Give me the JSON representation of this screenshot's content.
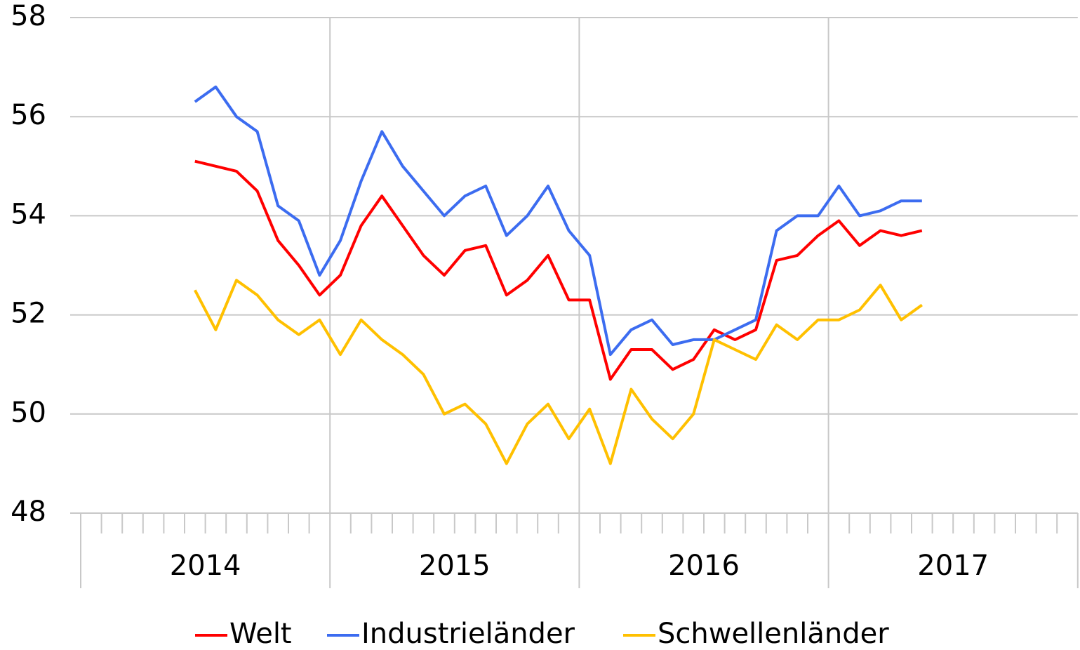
{
  "chart_data": {
    "type": "line",
    "categories": [
      null,
      null,
      null,
      null,
      null,
      null,
      null,
      null,
      null,
      null,
      null,
      null,
      null,
      null,
      null,
      null,
      null,
      null,
      null,
      null,
      null,
      null,
      null,
      null,
      null,
      null,
      null,
      null,
      null,
      null,
      null,
      null,
      null,
      null,
      null,
      null,
      null,
      null,
      null,
      null,
      null,
      null,
      null,
      null,
      null,
      null,
      null,
      null
    ],
    "year_labels": [
      "2014",
      "2015",
      "2016",
      "2017"
    ],
    "series": [
      {
        "name": "Welt",
        "color": "#ff0000",
        "values": [
          null,
          null,
          null,
          null,
          null,
          55.1,
          55.0,
          54.9,
          54.5,
          53.5,
          53.0,
          52.4,
          52.8,
          53.8,
          54.4,
          53.8,
          53.2,
          52.8,
          53.3,
          53.4,
          52.4,
          52.7,
          53.2,
          52.3,
          52.3,
          50.7,
          51.3,
          51.3,
          50.9,
          51.1,
          51.7,
          51.5,
          51.7,
          53.1,
          53.2,
          53.6,
          53.9,
          53.4,
          53.7,
          53.6,
          53.7,
          null,
          null,
          null,
          null,
          null,
          null,
          null
        ]
      },
      {
        "name": "Industrieländer",
        "color": "#3c6cf0",
        "values": [
          null,
          null,
          null,
          null,
          null,
          56.3,
          56.6,
          56.0,
          55.7,
          54.2,
          53.9,
          52.8,
          53.5,
          54.7,
          55.7,
          55.0,
          54.5,
          54.0,
          54.4,
          54.6,
          53.6,
          54.0,
          54.6,
          53.7,
          53.2,
          51.2,
          51.7,
          51.9,
          51.4,
          51.5,
          51.5,
          51.7,
          51.9,
          53.7,
          54.0,
          54.0,
          54.6,
          54.0,
          54.1,
          54.3,
          54.3,
          null,
          null,
          null,
          null,
          null,
          null,
          null
        ]
      },
      {
        "name": "Schwellenländer",
        "color": "#ffc000",
        "values": [
          null,
          null,
          null,
          null,
          null,
          52.5,
          51.7,
          52.7,
          52.4,
          51.9,
          51.6,
          51.9,
          51.2,
          51.9,
          51.5,
          51.2,
          50.8,
          50.0,
          50.2,
          49.8,
          49.0,
          49.8,
          50.2,
          49.5,
          50.1,
          49.0,
          50.5,
          49.9,
          49.5,
          50.0,
          51.5,
          51.3,
          51.1,
          51.8,
          51.5,
          51.9,
          51.9,
          52.1,
          52.6,
          51.9,
          52.2,
          null,
          null,
          null,
          null,
          null,
          null,
          null
        ]
      }
    ],
    "ylim": [
      48,
      58
    ],
    "yticks": [
      48,
      50,
      52,
      54,
      56,
      58
    ],
    "grid": true,
    "legend": "bottom"
  }
}
